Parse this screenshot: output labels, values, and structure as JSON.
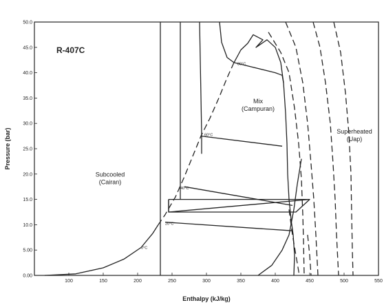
{
  "chart_data": {
    "type": "line",
    "title": "R-407C",
    "xlabel": "Enthalpy (kJ/kg)",
    "ylabel": "Pressure (bar)",
    "xlim": [
      50,
      550
    ],
    "ylim": [
      0,
      50
    ],
    "grid": false,
    "xticks": [
      "100",
      "150",
      "200",
      "250",
      "300",
      "350",
      "400",
      "450",
      "500",
      "550"
    ],
    "yticks": [
      "0.00",
      "5.00",
      "10.0",
      "15.0",
      "20.0",
      "25.0",
      "30.0",
      "35.0",
      "40.0",
      "45.0",
      "50.0"
    ],
    "regions": [
      {
        "name": "subcooled",
        "lines": [
          "Subcooled",
          "(Cairan)"
        ],
        "x": 160,
        "y": 19.5
      },
      {
        "name": "mix",
        "lines": [
          "Mix",
          "(Campuran)"
        ],
        "x": 375,
        "y": 34
      },
      {
        "name": "superheated",
        "lines": [
          "Superheated",
          "(Uap)"
        ],
        "x": 515,
        "y": 28
      }
    ],
    "isotherm_labels": [
      {
        "text": "0°C",
        "x": 205,
        "y": 5.2
      },
      {
        "text": "20°C",
        "x": 240,
        "y": 10
      },
      {
        "text": "40°C",
        "x": 262,
        "y": 17
      },
      {
        "text": "60°C",
        "x": 297,
        "y": 27.5
      },
      {
        "text": "80°C",
        "x": 345,
        "y": 41.5
      }
    ],
    "series": [
      {
        "style": "dashed",
        "points": [
          [
            340,
            42
          ],
          [
            330,
            39
          ],
          [
            318,
            35
          ],
          [
            305,
            31
          ],
          [
            292,
            27.5
          ],
          [
            280,
            23.5
          ],
          [
            268,
            19.5
          ],
          [
            255,
            15.5
          ],
          [
            240,
            12
          ],
          [
            230,
            10
          ]
        ]
      },
      {
        "style": "solid",
        "points": [
          [
            65,
            0
          ],
          [
            110,
            0.3
          ],
          [
            150,
            1.5
          ],
          [
            180,
            3.2
          ],
          [
            205,
            5.5
          ],
          [
            222,
            8.3
          ],
          [
            230,
            10
          ]
        ]
      },
      {
        "style": "solid",
        "points": [
          [
            340,
            42
          ],
          [
            350,
            44.5
          ],
          [
            360,
            45.8
          ],
          [
            368,
            47.5
          ],
          [
            382,
            46.5
          ],
          [
            372,
            45
          ],
          [
            388,
            46.5
          ],
          [
            400,
            45
          ],
          [
            408,
            42
          ],
          [
            412,
            38
          ],
          [
            415,
            32
          ],
          [
            417,
            26
          ],
          [
            418,
            20
          ],
          [
            420,
            15
          ],
          [
            423,
            11
          ],
          [
            426,
            8
          ],
          [
            428,
            4
          ],
          [
            427,
            0
          ]
        ]
      },
      {
        "style": "solid",
        "points": [
          [
            375,
            0
          ],
          [
            395,
            2
          ],
          [
            410,
            5
          ],
          [
            420,
            8
          ],
          [
            427,
            13
          ],
          [
            432,
            18
          ],
          [
            438,
            23
          ]
        ]
      },
      {
        "style": "solid",
        "points": [
          [
            233,
            50
          ],
          [
            233,
            0
          ]
        ]
      },
      {
        "style": "solid",
        "points": [
          [
            262,
            50
          ],
          [
            262,
            15
          ]
        ]
      },
      {
        "style": "solid",
        "points": [
          [
            290,
            50
          ],
          [
            293,
            28
          ],
          [
            293,
            24
          ]
        ]
      },
      {
        "style": "solid",
        "points": [
          [
            319,
            50
          ],
          [
            322,
            46
          ],
          [
            330,
            43
          ],
          [
            340,
            42
          ]
        ]
      },
      {
        "style": "solid",
        "points": [
          [
            340,
            42
          ],
          [
            400,
            40
          ],
          [
            410,
            39.5
          ],
          [
            412,
            38
          ]
        ]
      },
      {
        "style": "solid",
        "points": [
          [
            292,
            27.5
          ],
          [
            410,
            25.5
          ]
        ]
      },
      {
        "style": "solid",
        "points": [
          [
            268,
            17.5
          ],
          [
            425,
            13.8
          ]
        ]
      },
      {
        "style": "solid",
        "points": [
          [
            240,
            10.5
          ],
          [
            425,
            8.8
          ]
        ]
      },
      {
        "style": "solid",
        "points": [
          [
            245,
            15
          ],
          [
            450,
            15
          ],
          [
            430,
            12.5
          ],
          [
            245,
            12.5
          ],
          [
            245,
            15
          ]
        ]
      },
      {
        "style": "solid",
        "points": [
          [
            245,
            15
          ],
          [
            245,
            12.5
          ],
          [
            450,
            15
          ]
        ]
      },
      {
        "style": "dashed",
        "points": [
          [
            390,
            48
          ],
          [
            408,
            44
          ],
          [
            420,
            40
          ],
          [
            428,
            33
          ],
          [
            434,
            26
          ],
          [
            438,
            19
          ],
          [
            440,
            12
          ],
          [
            441,
            7
          ],
          [
            442,
            0
          ]
        ]
      },
      {
        "style": "dashed",
        "points": [
          [
            415,
            50
          ],
          [
            430,
            45
          ],
          [
            440,
            38
          ],
          [
            447,
            30
          ],
          [
            452,
            22
          ],
          [
            456,
            15
          ],
          [
            459,
            8
          ],
          [
            462,
            0
          ]
        ]
      },
      {
        "style": "dashed",
        "points": [
          [
            420,
            13
          ],
          [
            425,
            8
          ],
          [
            430,
            4
          ],
          [
            435,
            0
          ]
        ]
      },
      {
        "style": "dashed",
        "points": [
          [
            447,
            8
          ],
          [
            450,
            4
          ],
          [
            452,
            0
          ]
        ]
      },
      {
        "style": "dashed",
        "points": [
          [
            455,
            50
          ],
          [
            465,
            45
          ],
          [
            473,
            38
          ],
          [
            480,
            30
          ],
          [
            484,
            22
          ],
          [
            487,
            15
          ],
          [
            489,
            8
          ],
          [
            492,
            0
          ]
        ]
      },
      {
        "style": "dashed",
        "points": [
          [
            485,
            50
          ],
          [
            495,
            44
          ],
          [
            502,
            36
          ],
          [
            507,
            28
          ],
          [
            510,
            20
          ],
          [
            511,
            12
          ],
          [
            512,
            5
          ],
          [
            513,
            0
          ]
        ]
      }
    ]
  }
}
